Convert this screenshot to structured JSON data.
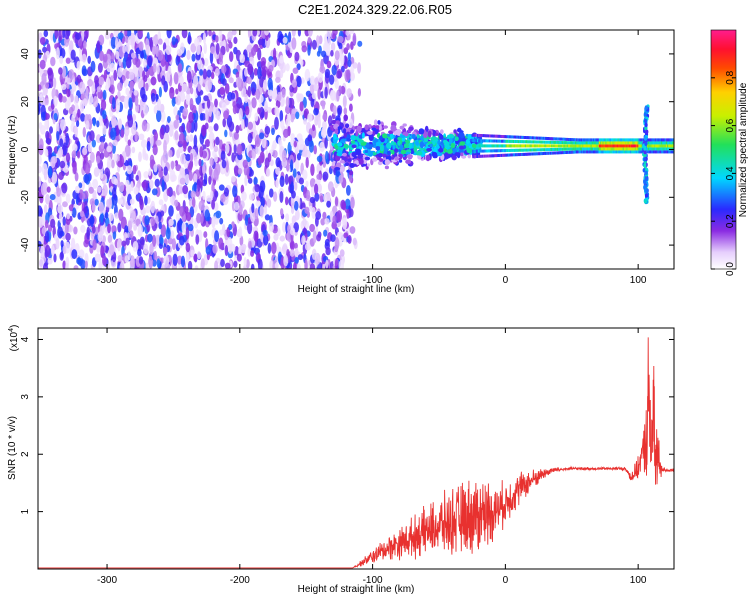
{
  "title": "C2E1.2024.329.22.06.R05",
  "colors": {
    "spectrogram_noise": "#7b2be0",
    "snr_line": "#e8312f",
    "frame": "#000000"
  },
  "chart_data": [
    {
      "type": "heatmap",
      "name": "spectrogram",
      "xlabel": "Height of straight line (km)",
      "ylabel": "Frequency (Hz)",
      "xlim": [
        -352,
        127
      ],
      "ylim": [
        -50,
        50
      ],
      "xticks": [
        -300,
        -200,
        -100,
        0,
        100
      ],
      "yticks": [
        -40,
        -20,
        0,
        20,
        40
      ],
      "xtick_labels": [
        "-300",
        "-200",
        "-100",
        "0",
        "100"
      ],
      "ytick_labels": [
        "-40",
        "-20",
        "0",
        "20",
        "40"
      ],
      "colorbar": {
        "label": "Normalized spectral amplitude",
        "range": [
          0,
          1
        ],
        "ticks": [
          0.0,
          0.2,
          0.4,
          0.6,
          0.8
        ],
        "tick_labels": [
          "0.0",
          "0.2",
          "0.4",
          "0.6",
          "0.8"
        ],
        "colormap": "rainbow (white→violet→blue→cyan→green→yellow→red→magenta)"
      },
      "features": [
        {
          "region": "noise",
          "x_range": [
            -352,
            -115
          ],
          "freq_range": [
            -50,
            50
          ],
          "amplitude": "0.05–0.25"
        },
        {
          "region": "transition",
          "x_range": [
            -130,
            -20
          ],
          "freq_center": 2,
          "freq_spread": 12,
          "amplitude": "0.2–0.5"
        },
        {
          "region": "tone",
          "x_range": [
            -20,
            127
          ],
          "freq": 1.5,
          "amplitude": "0.6–0.95"
        },
        {
          "region": "burst",
          "x": 107,
          "freq_range": [
            -22,
            18
          ]
        }
      ]
    },
    {
      "type": "line",
      "name": "snr",
      "xlabel": "Height of straight line (km)",
      "ylabel": "SNR (10 * v/v)",
      "y_multiplier": "(x10",
      "y_multiplier_exp": "4",
      "y_multiplier_close": ")",
      "xlim": [
        -352,
        127
      ],
      "ylim": [
        0,
        4.2
      ],
      "xticks": [
        -300,
        -200,
        -100,
        0,
        100
      ],
      "yticks": [
        1,
        2,
        3,
        4
      ],
      "xtick_labels": [
        "-300",
        "-200",
        "-100",
        "0",
        "100"
      ],
      "ytick_labels": [
        "1",
        "2",
        "3",
        "4"
      ],
      "series": [
        {
          "envelope_x": [
            -352,
            -115,
            -105,
            -90,
            -70,
            -50,
            -30,
            -12,
            -5,
            0,
            10,
            25,
            35,
            50,
            90,
            95,
            100,
            105,
            109,
            113,
            117,
            122,
            127
          ],
          "envelope_y": [
            0.02,
            0.02,
            0.15,
            0.35,
            0.55,
            0.75,
            0.9,
            1.0,
            1.05,
            1.15,
            1.4,
            1.62,
            1.72,
            1.75,
            1.75,
            1.6,
            1.75,
            2.2,
            2.6,
            2.0,
            1.75,
            1.72,
            1.72
          ],
          "noise_amplitude_x": [
            -352,
            -115,
            -100,
            -60,
            -20,
            -5,
            10,
            30,
            45,
            90,
            104,
            108,
            112,
            118,
            127
          ],
          "noise_amplitude_y": [
            0.0,
            0.0,
            0.15,
            0.5,
            0.85,
            0.5,
            0.35,
            0.1,
            0.03,
            0.03,
            0.3,
            2.1,
            1.5,
            0.05,
            0.03
          ]
        }
      ]
    }
  ]
}
